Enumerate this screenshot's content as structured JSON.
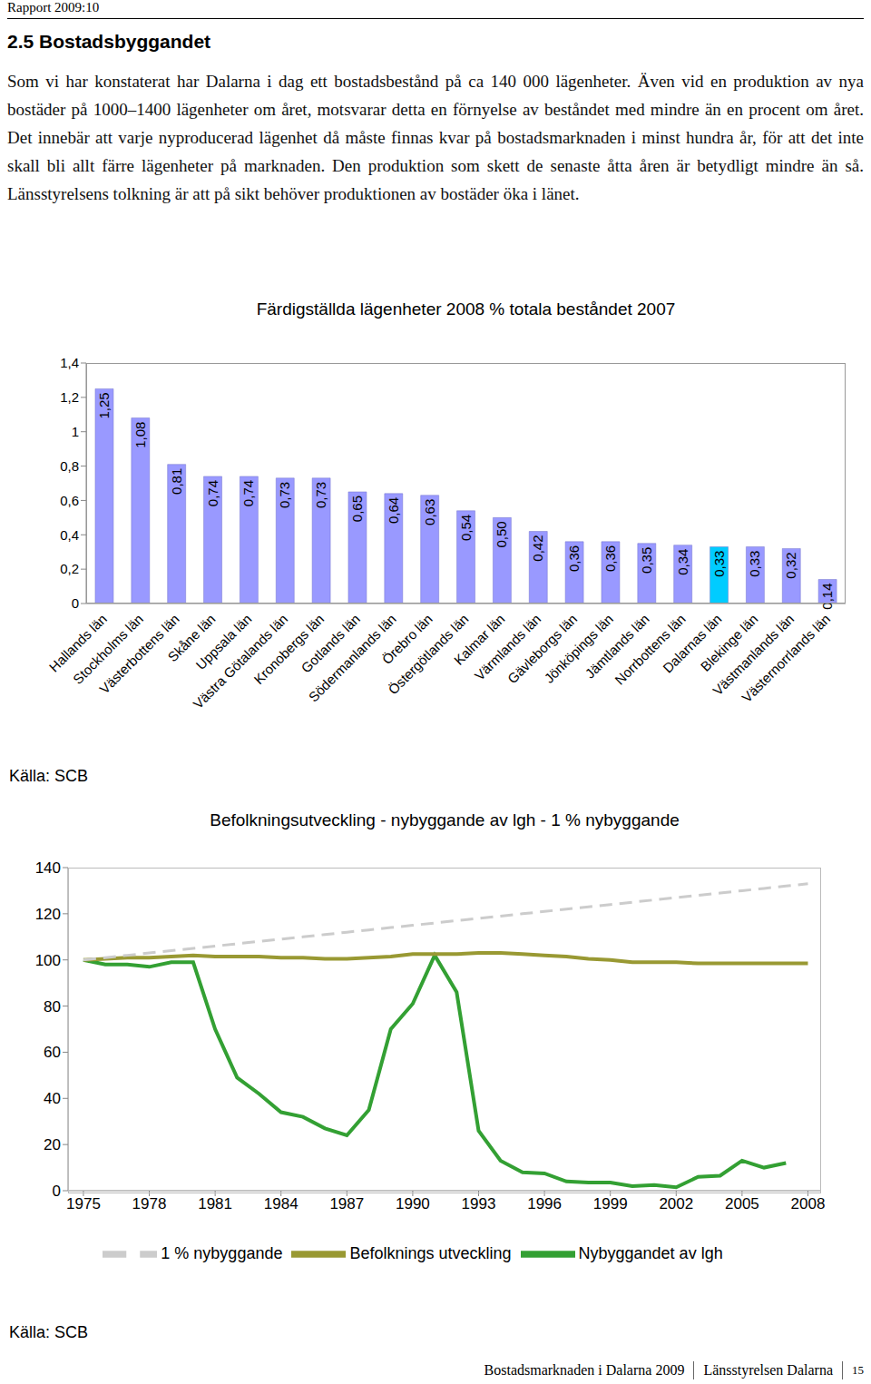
{
  "header": "Rapport 2009:10",
  "heading": "2.5 Bostadsbyggandet",
  "paragraph": "Som vi har konstaterat har Dalarna i dag ett bostadsbestånd på ca 140 000 lägenheter. Även vid en produktion av nya bostäder på 1000–1400 lägenheter om året, motsvarar detta en förnyelse av beståndet med mindre än en procent om året. Det innebär att varje nyproducerad lägenhet då måste finnas kvar på bostadsmarknaden i minst hundra år, för att det inte skall bli allt färre lägenheter på marknaden. Den produktion som skett de senaste åtta åren är betydligt mindre än så. Länsstyrelsens tolkning är att på sikt behöver produktionen av bostäder öka i länet.",
  "chart_data": [
    {
      "type": "bar",
      "title": "Färdigställda lägenheter 2008 % totala beståndet 2007",
      "categories": [
        "Hallands län",
        "Stockholms län",
        "Västerbottens län",
        "Skåne län",
        "Uppsala län",
        "Västra Götalands län",
        "Kronobergs län",
        "Gotlands län",
        "Södermanlands län",
        "Örebro län",
        "Östergötlands län",
        "Kalmar län",
        "Värmlands län",
        "Gävleborgs län",
        "Jönköpings län",
        "Jämtlands län",
        "Norrbottens län",
        "Dalarnas län",
        "Blekinge län",
        "Västmanlands län",
        "Västernorrlands län"
      ],
      "values": [
        1.25,
        1.08,
        0.81,
        0.74,
        0.74,
        0.73,
        0.73,
        0.65,
        0.64,
        0.63,
        0.54,
        0.5,
        0.42,
        0.36,
        0.36,
        0.35,
        0.34,
        0.33,
        0.33,
        0.32,
        0.14
      ],
      "value_labels": [
        "1,25",
        "1,08",
        "0,81",
        "0,74",
        "0,74",
        "0,73",
        "0,73",
        "0,65",
        "0,64",
        "0,63",
        "0,54",
        "0,50",
        "0,42",
        "0,36",
        "0,36",
        "0,35",
        "0,34",
        "0,33",
        "0,33",
        "0,32",
        "0,14"
      ],
      "data_labels": true,
      "colors": [
        "#9999ff",
        "#9999ff",
        "#9999ff",
        "#9999ff",
        "#9999ff",
        "#9999ff",
        "#9999ff",
        "#9999ff",
        "#9999ff",
        "#9999ff",
        "#9999ff",
        "#9999ff",
        "#9999ff",
        "#9999ff",
        "#9999ff",
        "#9999ff",
        "#9999ff",
        "#00ccff",
        "#9999ff",
        "#9999ff",
        "#9999ff"
      ],
      "ylim": [
        0,
        1.4
      ],
      "yticks": [
        0,
        {
          "value": 0.2,
          "label": "0,2"
        },
        {
          "value": 0.4,
          "label": "0,4"
        },
        {
          "value": 0.6,
          "label": "0,6"
        },
        {
          "value": 0.8,
          "label": "0,8"
        },
        1,
        {
          "value": 1.2,
          "label": "1,2"
        },
        {
          "value": 1.4,
          "label": "1,4"
        }
      ],
      "grid": false
    },
    {
      "type": "line",
      "title": "Befolkningsutveckling - nybyggande av lgh - 1 % nybyggande",
      "x": [
        1975,
        1976,
        1977,
        1978,
        1979,
        1980,
        1981,
        1982,
        1983,
        1984,
        1985,
        1986,
        1987,
        1988,
        1989,
        1990,
        1991,
        1992,
        1993,
        1994,
        1995,
        1996,
        1997,
        1998,
        1999,
        2000,
        2001,
        2002,
        2003,
        2004,
        2005,
        2006,
        2007,
        2008
      ],
      "series": [
        {
          "name": "Nybyggandet av lgh",
          "color": "#33a033",
          "values": [
            100,
            98,
            98,
            97,
            99,
            99,
            70,
            49,
            42,
            34,
            32,
            27,
            24,
            35,
            70,
            81,
            102,
            86,
            26,
            13,
            8,
            7.5,
            4,
            3.5,
            3.5,
            2,
            2.5,
            1.5,
            6,
            6.5,
            13,
            10,
            12,
            null
          ]
        },
        {
          "name": "Befolknings utveckling",
          "color": "#999933",
          "values": [
            100,
            100.5,
            101,
            101,
            101.5,
            102,
            101.5,
            101.5,
            101.5,
            101,
            101,
            100.5,
            100.5,
            101,
            101.5,
            102.5,
            102.5,
            102.5,
            103,
            103,
            102.5,
            102,
            101.5,
            100.5,
            100,
            99,
            99,
            99,
            98.5,
            98.5,
            98.5,
            98.5,
            98.5,
            98.5
          ]
        },
        {
          "name": "1 % nybyggande",
          "color": "#cccccc",
          "line_style": "dashed",
          "values": [
            100,
            101,
            102,
            103,
            104,
            105,
            106,
            107,
            108,
            109,
            110,
            111,
            112,
            113,
            114,
            115,
            116,
            117,
            118,
            119,
            120,
            121,
            122,
            123,
            124,
            125,
            126,
            127,
            128,
            129,
            130,
            131,
            132,
            133
          ]
        }
      ],
      "xlim": [
        1974.3,
        2008.6
      ],
      "xticks": [
        1975,
        1978,
        1981,
        1984,
        1987,
        1990,
        1993,
        1996,
        1999,
        2002,
        2005,
        2008
      ],
      "ylim": [
        0,
        140
      ],
      "yticks": [
        0,
        20,
        40,
        60,
        80,
        100,
        120,
        140
      ],
      "grid": false,
      "legend": "bottom"
    }
  ],
  "sources": [
    "Källa: SCB",
    "Källa: SCB"
  ],
  "footer": {
    "title": "Bostadsmarknaden i Dalarna 2009",
    "publisher": "Länsstyrelsen Dalarna",
    "page": 15
  }
}
